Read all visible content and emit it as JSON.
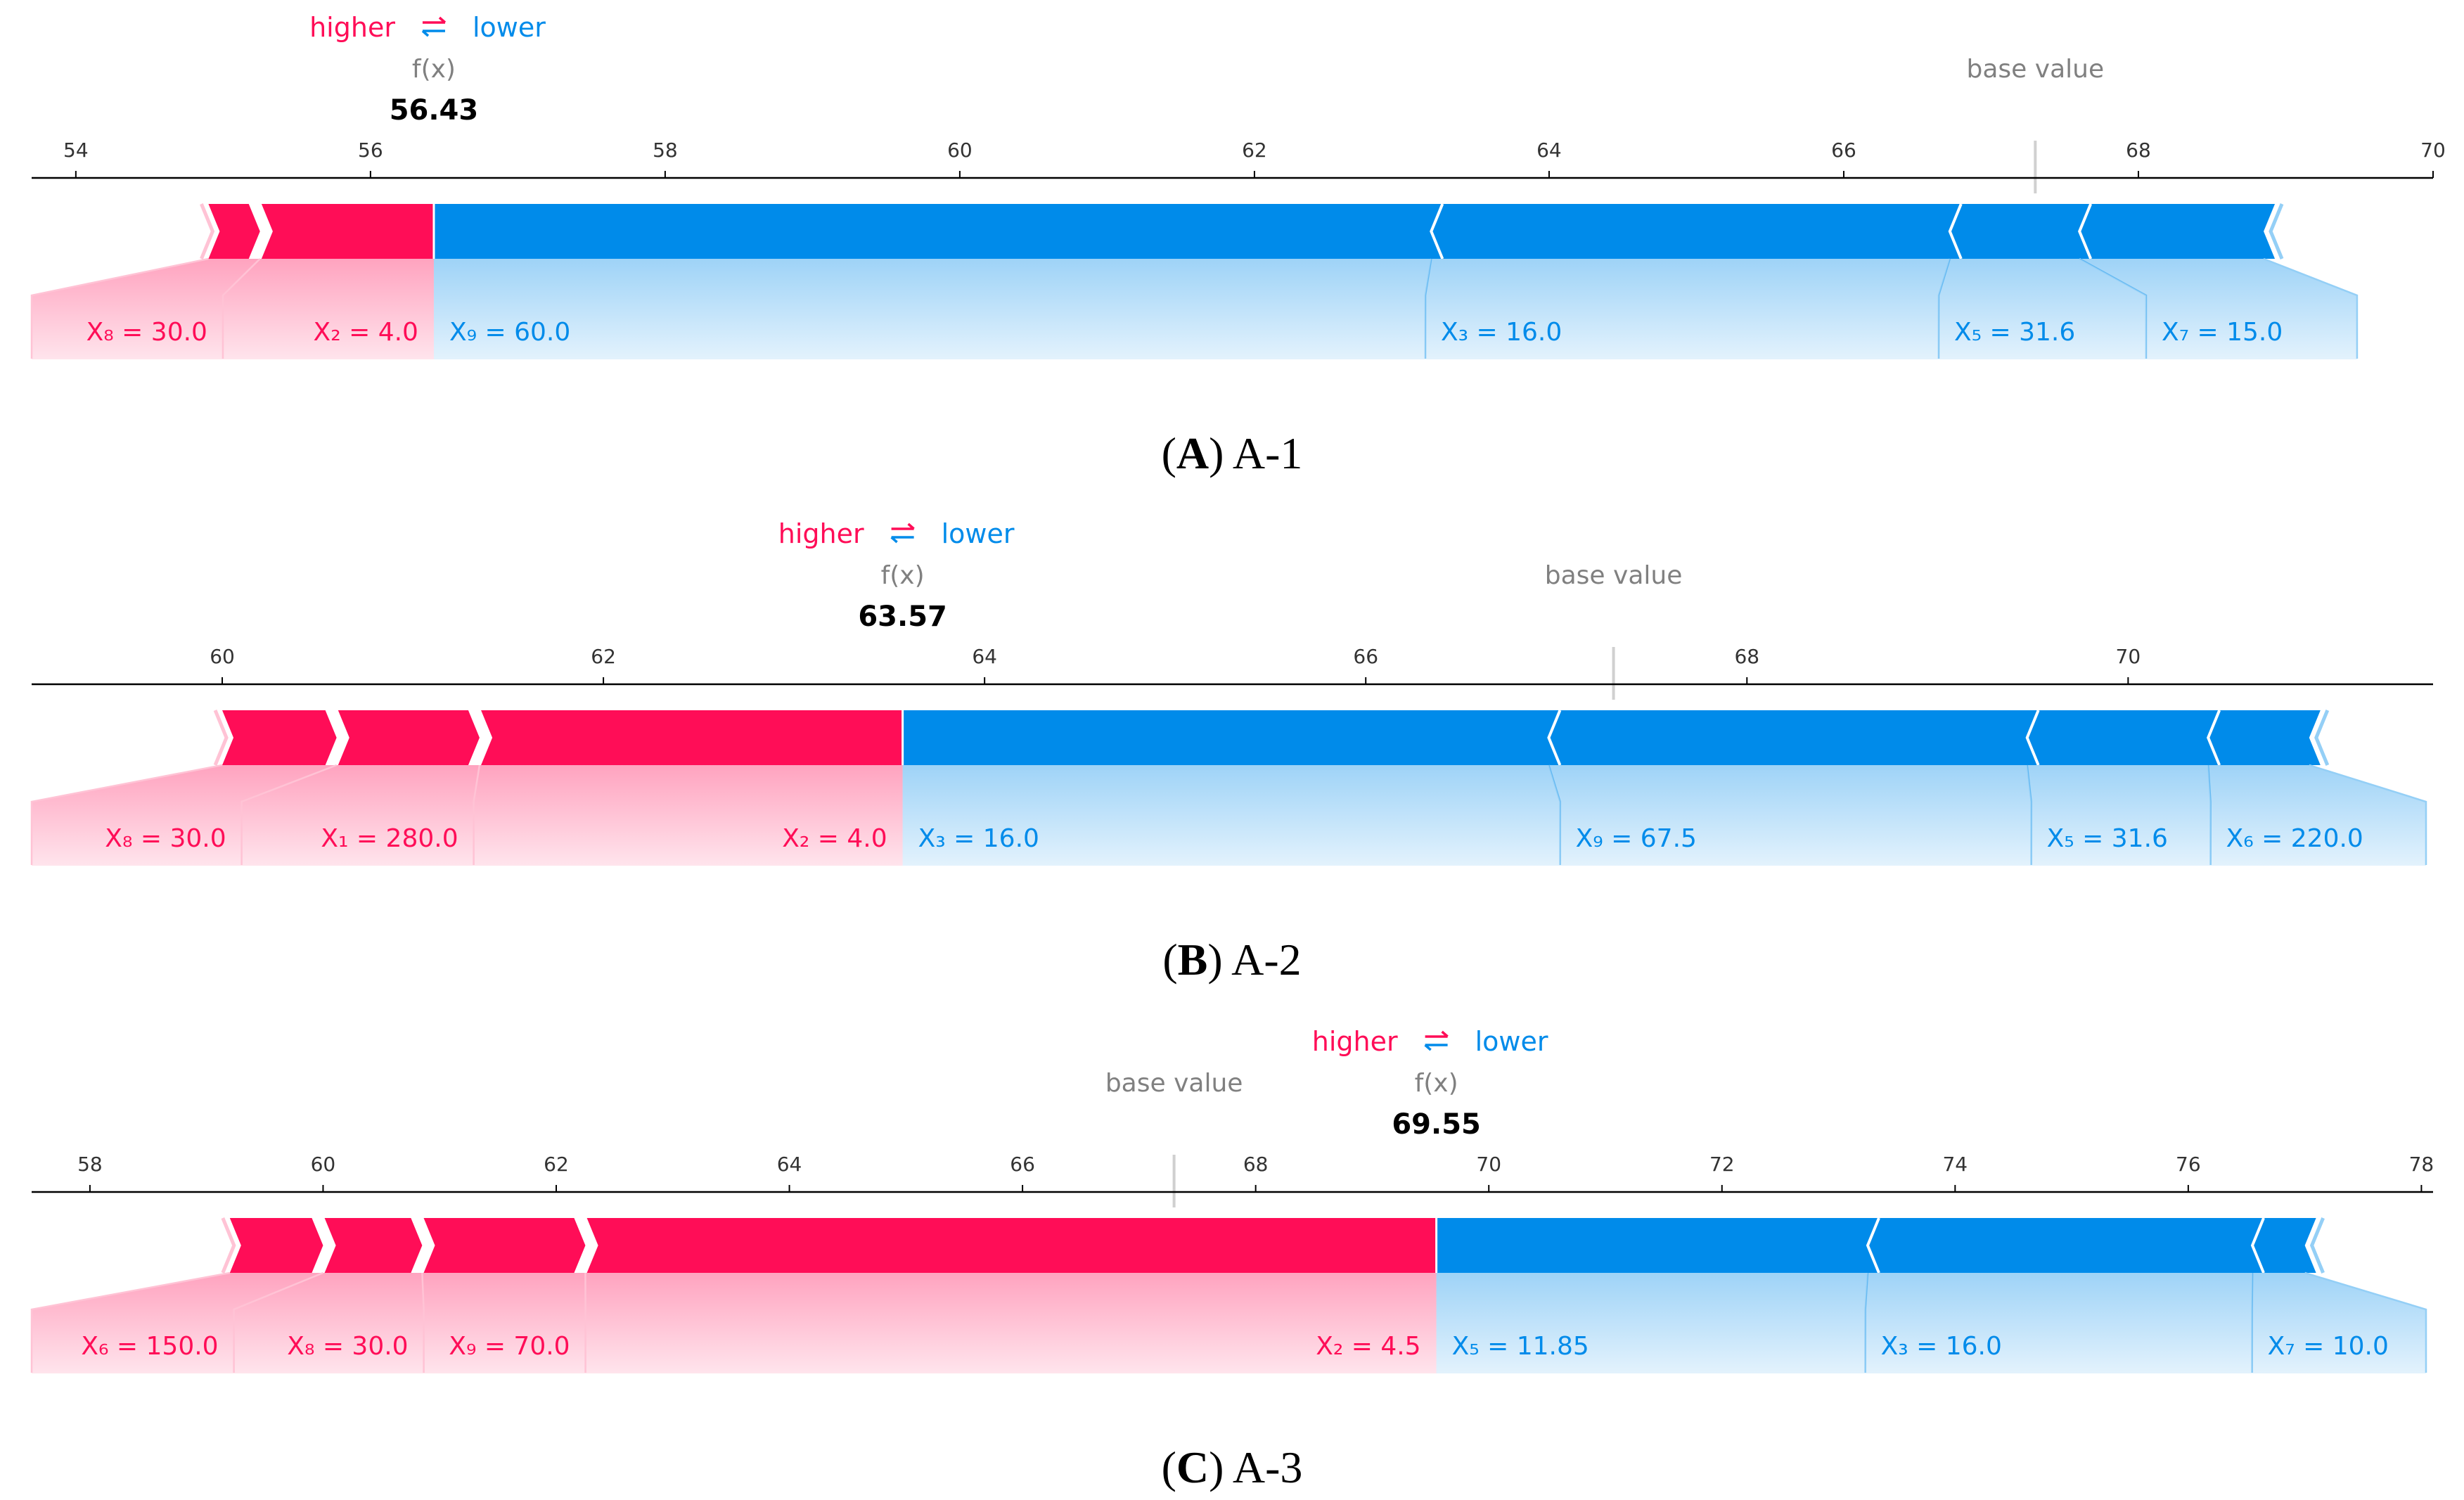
{
  "colors": {
    "positive": "#ff0d57",
    "negative": "#008bea",
    "positive_light": "#ffc3d5",
    "negative_light": "#94cff6",
    "axis": "#000000",
    "muted": "#808080"
  },
  "legend": {
    "higher": "higher",
    "arrow": "⇄",
    "lower": "lower"
  },
  "fx_label": "f(x)",
  "base_label": "base value",
  "chart_data": [
    {
      "type": "force",
      "caption_letter": "A",
      "caption_rest": ") A-1",
      "caption_open": "(",
      "xlim": [
        53.7,
        70
      ],
      "ticks": [
        54,
        56,
        58,
        60,
        62,
        64,
        66,
        68,
        70
      ],
      "fx": 56.43,
      "fx_text": "56.43",
      "base_value": 67.3,
      "positive": [
        {
          "label": "X₈ = 30.0",
          "from": 54.9,
          "to": 55.25
        },
        {
          "label": "X₂ = 4.0",
          "from": 55.25,
          "to": 56.43
        }
      ],
      "negative": [
        {
          "label": "X₉ = 60.0",
          "from": 56.43,
          "to": 63.2
        },
        {
          "label": "X₃ = 16.0",
          "from": 63.2,
          "to": 66.72
        },
        {
          "label": "X₅ = 31.6",
          "from": 66.72,
          "to": 67.6
        },
        {
          "label": "X₇ = 15.0",
          "from": 67.6,
          "to": 68.85
        }
      ]
    },
    {
      "type": "force",
      "caption_letter": "B",
      "caption_rest": ") A-2",
      "caption_open": "(",
      "xlim": [
        59.0,
        71.6
      ],
      "ticks": [
        60,
        62,
        64,
        66,
        68,
        70
      ],
      "fx": 63.57,
      "fx_text": "63.57",
      "base_value": 67.3,
      "positive": [
        {
          "label": "X₈ = 30.0",
          "from": 60.0,
          "to": 60.6
        },
        {
          "label": "X₁ = 280.0",
          "from": 60.6,
          "to": 61.35
        },
        {
          "label": "X₂ = 4.0",
          "from": 61.35,
          "to": 63.57
        }
      ],
      "negative": [
        {
          "label": "X₃ = 16.0",
          "from": 63.57,
          "to": 66.96
        },
        {
          "label": "X₉ = 67.5",
          "from": 66.96,
          "to": 69.47
        },
        {
          "label": "X₅ = 31.6",
          "from": 69.47,
          "to": 70.42
        },
        {
          "label": "X₆ = 220.0",
          "from": 70.42,
          "to": 70.95
        }
      ]
    },
    {
      "type": "force",
      "caption_letter": "C",
      "caption_rest": ") A-3",
      "caption_open": "(",
      "xlim": [
        57.5,
        78.1
      ],
      "ticks": [
        58,
        60,
        62,
        64,
        66,
        68,
        70,
        72,
        74,
        76,
        78
      ],
      "fx": 69.55,
      "fx_text": "69.55",
      "base_value": 67.3,
      "positive": [
        {
          "label": "X₆ = 150.0",
          "from": 59.2,
          "to": 60.0
        },
        {
          "label": "X₈ = 30.0",
          "from": 60.0,
          "to": 60.85
        },
        {
          "label": "X₉ = 70.0",
          "from": 60.85,
          "to": 62.25
        },
        {
          "label": "X₂ = 4.5",
          "from": 62.25,
          "to": 69.55
        }
      ],
      "negative": [
        {
          "label": "X₅ = 11.85",
          "from": 69.55,
          "to": 73.25
        },
        {
          "label": "X₃ = 16.0",
          "from": 73.25,
          "to": 76.55
        },
        {
          "label": "X₇ = 10.0",
          "from": 76.55,
          "to": 77.0
        }
      ]
    }
  ]
}
